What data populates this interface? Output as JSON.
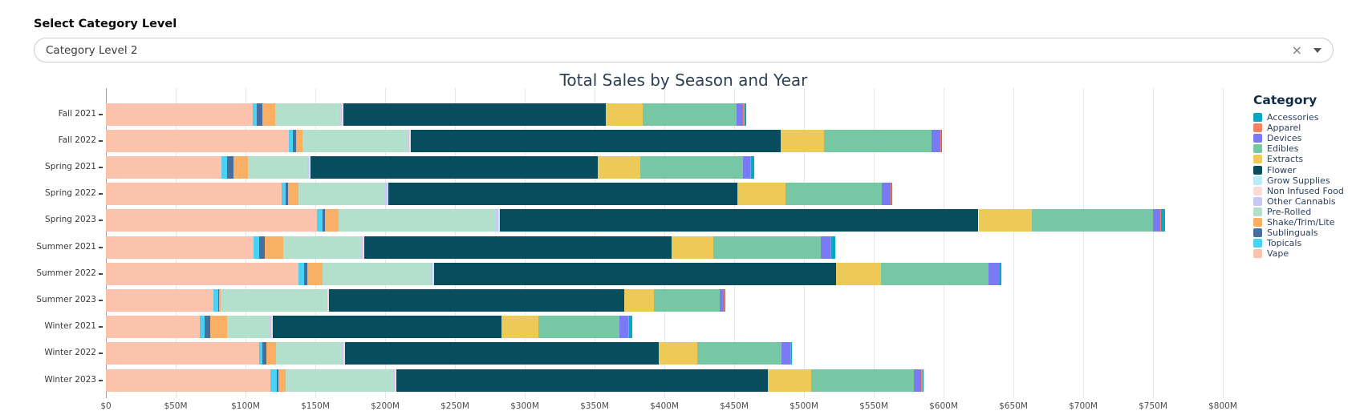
{
  "controls": {
    "label": "Select Category Level",
    "selected_value": "Category Level 2",
    "clear_icon": "×",
    "caret_icon": "▾"
  },
  "chart_data": {
    "type": "bar",
    "orientation": "horizontal",
    "stacked": true,
    "title": "Total Sales by Season and Year",
    "xlabel": "",
    "ylabel": "",
    "units": "USD millions",
    "xlim_millions": [
      0,
      800
    ],
    "x_tick_step_millions": 50,
    "x_ticks": [
      "$0",
      "$50M",
      "$100M",
      "$150M",
      "$200M",
      "$250M",
      "$300M",
      "$350M",
      "$400M",
      "$450M",
      "$500M",
      "$550M",
      "$600M",
      "$650M",
      "$700M",
      "$750M",
      "$800M"
    ],
    "grid": true,
    "legend_title": "Category",
    "legend_position": "right",
    "stack_order": "series stack left-to-right in reverse of the legend order (Vape first, Accessories last)",
    "categories": [
      "Fall 2021",
      "Fall 2022",
      "Spring 2021",
      "Spring 2022",
      "Spring 2023",
      "Summer 2021",
      "Summer 2022",
      "Summer 2023",
      "Winter 2021",
      "Winter 2022",
      "Winter 2023"
    ],
    "series": [
      {
        "name": "Accessories",
        "color": "#09a7c3",
        "values": [
          1,
          0.5,
          2.5,
          0.5,
          2.5,
          3,
          1,
          0.5,
          2.5,
          0.5,
          0.5
        ]
      },
      {
        "name": "Apparel",
        "color": "#f8825f",
        "values": [
          1,
          1,
          0.5,
          0.5,
          1,
          0.5,
          0.5,
          0.5,
          0.5,
          0.5,
          1
        ]
      },
      {
        "name": "Devices",
        "color": "#7b7af5",
        "values": [
          5,
          6,
          5,
          6.5,
          5,
          7,
          8,
          3,
          6,
          6.5,
          5
        ]
      },
      {
        "name": "Edibles",
        "color": "#76c7a3",
        "values": [
          67,
          77,
          74,
          69,
          87,
          77,
          77,
          47,
          58,
          60.5,
          74
        ]
      },
      {
        "name": "Extracts",
        "color": "#edc958",
        "values": [
          26.5,
          31,
          30,
          34,
          38,
          30,
          32,
          21,
          26.5,
          27.5,
          31
        ]
      },
      {
        "name": "Flower",
        "color": "#084d5d",
        "values": [
          188,
          265,
          206,
          250,
          343,
          220,
          288,
          212,
          164,
          225,
          266
        ]
      },
      {
        "name": "Grow Supplies",
        "color": "#b8ecf8",
        "values": [
          0.5,
          0.5,
          0.5,
          0.5,
          0.5,
          0.5,
          0.5,
          0.5,
          0.5,
          0.5,
          0.5
        ]
      },
      {
        "name": "Non Infused Food",
        "color": "#fbdcd4",
        "values": [
          0.5,
          0.5,
          0.5,
          0.5,
          0.5,
          0.5,
          0.5,
          0.5,
          0.5,
          0.5,
          0.5
        ]
      },
      {
        "name": "Other Cannabis",
        "color": "#c9c7f5",
        "values": [
          2,
          1.5,
          1.5,
          1.5,
          1.5,
          1,
          1,
          0.5,
          1,
          1,
          1
        ]
      },
      {
        "name": "Pre-Rolled",
        "color": "#b3dfcd",
        "values": [
          46,
          75,
          42,
          62,
          113,
          56,
          78,
          76,
          31,
          47,
          77
        ]
      },
      {
        "name": "Shake/Trim/Lite",
        "color": "#f9b065",
        "values": [
          9,
          5,
          10.5,
          7.5,
          9.5,
          13,
          11,
          1,
          12,
          7,
          5.5
        ]
      },
      {
        "name": "Sublinguals",
        "color": "#476f9e",
        "values": [
          4,
          2,
          4.5,
          2,
          2,
          4.5,
          2,
          0.5,
          4,
          3,
          1
        ]
      },
      {
        "name": "Topicals",
        "color": "#49d2f5",
        "values": [
          3,
          3,
          4,
          2.5,
          4,
          3.5,
          4,
          3.5,
          3.5,
          2,
          4.5
        ]
      },
      {
        "name": "Vape",
        "color": "#fcc3ac",
        "values": [
          105,
          131,
          83,
          126,
          151,
          106,
          138,
          77,
          67,
          110,
          118
        ]
      }
    ]
  }
}
